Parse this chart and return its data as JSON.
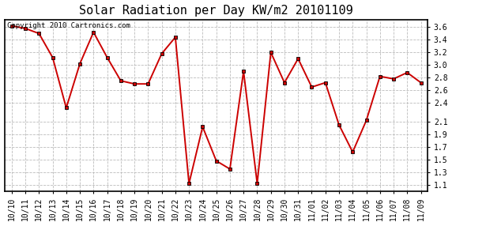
{
  "title": "Solar Radiation per Day KW/m2 20101109",
  "copyright": "Copyright 2010 Cartronics.com",
  "labels": [
    "10/10",
    "10/11",
    "10/12",
    "10/13",
    "10/14",
    "10/15",
    "10/16",
    "10/17",
    "10/18",
    "10/19",
    "10/20",
    "10/21",
    "10/22",
    "10/23",
    "10/24",
    "10/25",
    "10/26",
    "10/27",
    "10/28",
    "10/29",
    "10/30",
    "10/31",
    "11/01",
    "11/02",
    "11/03",
    "11/04",
    "11/05",
    "11/06",
    "11/07",
    "11/08",
    "11/09"
  ],
  "values": [
    3.62,
    3.58,
    3.5,
    3.12,
    2.32,
    3.02,
    3.52,
    3.12,
    2.75,
    2.7,
    2.7,
    3.18,
    3.44,
    1.12,
    2.02,
    1.48,
    1.35,
    2.9,
    1.12,
    3.2,
    2.72,
    3.1,
    2.65,
    2.72,
    2.05,
    1.62,
    2.12,
    2.82,
    2.78,
    2.88,
    2.72
  ],
  "ylim": [
    1.0,
    3.72
  ],
  "yticks": [
    1.1,
    1.3,
    1.5,
    1.7,
    1.9,
    2.1,
    2.4,
    2.6,
    2.8,
    3.0,
    3.2,
    3.4,
    3.6
  ],
  "line_color": "#cc0000",
  "marker_color": "#cc0000",
  "bg_color": "#ffffff",
  "grid_color": "#bbbbbb",
  "title_fontsize": 11,
  "tick_fontsize": 7,
  "copyright_fontsize": 6.5
}
